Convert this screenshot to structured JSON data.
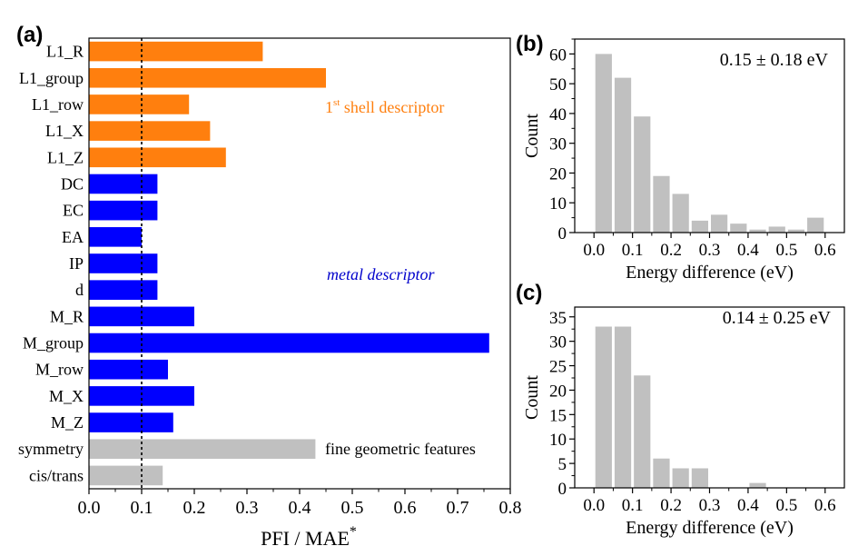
{
  "panel_labels": {
    "a": "(a)",
    "b": "(b)",
    "c": "(c)"
  },
  "colors": {
    "shell": "#ff7f0e",
    "metal": "#0000ff",
    "geometric": "#c0c0c0",
    "hist": "#c0c0c0",
    "metal_text": "#0000cc"
  },
  "chart_data": [
    {
      "type": "bar",
      "orientation": "horizontal",
      "xlabel": "PFI / MAE",
      "xlabel_sup": "*",
      "xlim": [
        0,
        0.8
      ],
      "xticks": [
        "0.0",
        "0.1",
        "0.2",
        "0.3",
        "0.4",
        "0.5",
        "0.6",
        "0.7",
        "0.8"
      ],
      "reference_line": 0.1,
      "categories": [
        "L1_R",
        "L1_group",
        "L1_row",
        "L1_X",
        "L1_Z",
        "DC",
        "EC",
        "EA",
        "IP",
        "d",
        "M_R",
        "M_group",
        "M_row",
        "M_X",
        "M_Z",
        "symmetry",
        "cis/trans"
      ],
      "values": [
        0.33,
        0.45,
        0.19,
        0.23,
        0.26,
        0.13,
        0.13,
        0.1,
        0.13,
        0.13,
        0.2,
        0.76,
        0.15,
        0.2,
        0.16,
        0.43,
        0.14
      ],
      "groups": [
        "shell",
        "shell",
        "shell",
        "shell",
        "shell",
        "metal",
        "metal",
        "metal",
        "metal",
        "metal",
        "metal",
        "metal",
        "metal",
        "metal",
        "metal",
        "geometric",
        "geometric"
      ],
      "annotations": {
        "shell": {
          "main": "1",
          "sup": "st",
          "rest": " shell descriptor"
        },
        "metal": "metal descriptor",
        "geometric": "fine geometric features"
      }
    },
    {
      "type": "bar",
      "annotation": "0.15 ± 0.18 eV",
      "xlabel": "Energy difference (eV)",
      "ylabel": "Count",
      "xlim": [
        -0.05,
        0.65
      ],
      "ylim": [
        0,
        65
      ],
      "xticks": [
        "0.0",
        "0.1",
        "0.2",
        "0.3",
        "0.4",
        "0.5",
        "0.6"
      ],
      "yticks": [
        "0",
        "10",
        "20",
        "30",
        "40",
        "50",
        "60"
      ],
      "x": [
        0.025,
        0.075,
        0.125,
        0.175,
        0.225,
        0.275,
        0.325,
        0.375,
        0.425,
        0.475,
        0.525,
        0.575
      ],
      "values": [
        60,
        52,
        39,
        19,
        13,
        4,
        6,
        3,
        1,
        2,
        1,
        5
      ],
      "bin_width": 0.05
    },
    {
      "type": "bar",
      "annotation": "0.14 ± 0.25 eV",
      "xlabel": "Energy difference (eV)",
      "ylabel": "Count",
      "xlim": [
        -0.05,
        0.65
      ],
      "ylim": [
        0,
        37
      ],
      "xticks": [
        "0.0",
        "0.1",
        "0.2",
        "0.3",
        "0.4",
        "0.5",
        "0.6"
      ],
      "yticks": [
        "0",
        "5",
        "10",
        "15",
        "20",
        "25",
        "30",
        "35"
      ],
      "x": [
        0.025,
        0.075,
        0.125,
        0.175,
        0.225,
        0.275,
        0.425
      ],
      "values": [
        33,
        33,
        23,
        6,
        4,
        4,
        1
      ],
      "bin_width": 0.05
    }
  ]
}
